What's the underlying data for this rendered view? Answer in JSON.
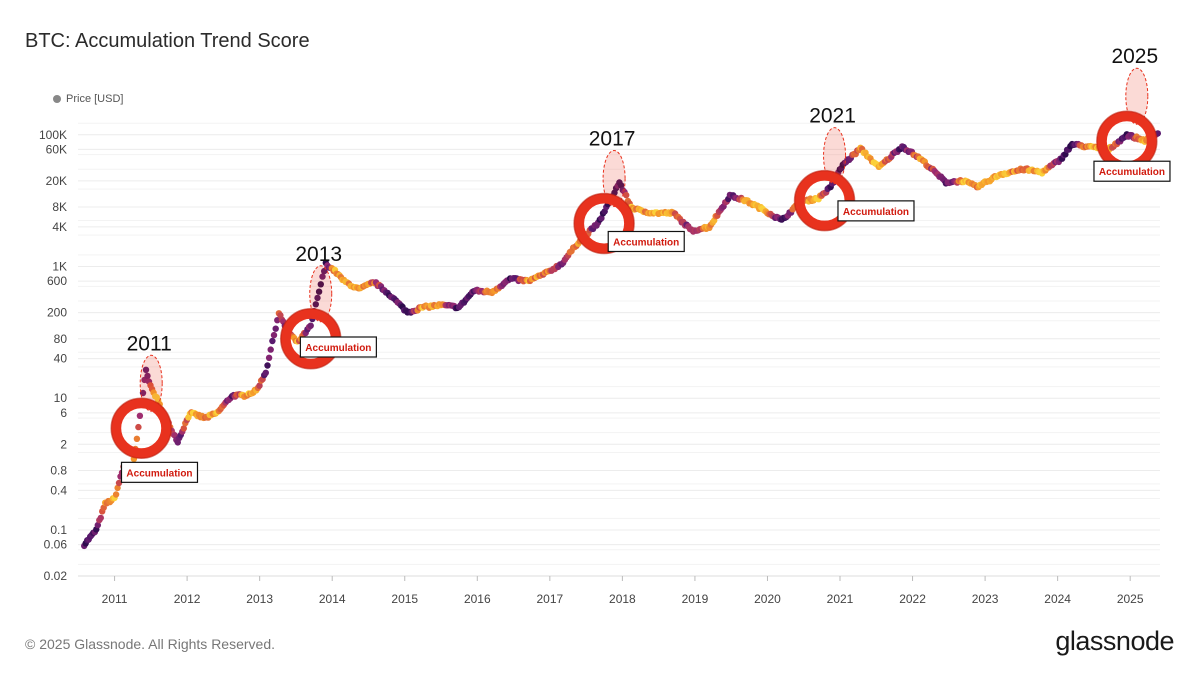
{
  "title": "BTC: Accumulation Trend Score",
  "legend": {
    "label": "Price [USD]",
    "color": "#888888"
  },
  "footer": "© 2025 Glassnode. All Rights Reserved.",
  "logo": "glassnode",
  "colors": {
    "background": "#ffffff",
    "grid": "#ececec",
    "annotation_red": "#e8321e",
    "annotation_text": "#d11a0e",
    "score_palette": [
      "#2a0a4a",
      "#5a1a6e",
      "#9a2a72",
      "#d9543e",
      "#f59a2a",
      "#fbd13a"
    ]
  },
  "chart_data": {
    "type": "scatter",
    "title": "BTC: Accumulation Trend Score",
    "xlabel": "",
    "ylabel": "",
    "x_range": [
      "2010-07-01",
      "2025-05-31"
    ],
    "y_scale": "log",
    "ylim": [
      0.02,
      180000
    ],
    "grid": true,
    "legend_position": "top-left",
    "x_ticks": [
      "2011",
      "2012",
      "2013",
      "2014",
      "2015",
      "2016",
      "2017",
      "2018",
      "2019",
      "2020",
      "2021",
      "2022",
      "2023",
      "2024",
      "2025"
    ],
    "y_ticks": [
      {
        "label": "0.02",
        "value": 0.02
      },
      {
        "label": "0.06",
        "value": 0.06
      },
      {
        "label": "0.1",
        "value": 0.1
      },
      {
        "label": "0.4",
        "value": 0.4
      },
      {
        "label": "0.8",
        "value": 0.8
      },
      {
        "label": "2",
        "value": 2
      },
      {
        "label": "6",
        "value": 6
      },
      {
        "label": "10",
        "value": 10
      },
      {
        "label": "40",
        "value": 40
      },
      {
        "label": "80",
        "value": 80
      },
      {
        "label": "200",
        "value": 200
      },
      {
        "label": "600",
        "value": 600
      },
      {
        "label": "1K",
        "value": 1000
      },
      {
        "label": "4K",
        "value": 4000
      },
      {
        "label": "8K",
        "value": 8000
      },
      {
        "label": "20K",
        "value": 20000
      },
      {
        "label": "60K",
        "value": 60000
      },
      {
        "label": "100K",
        "value": 100000
      }
    ],
    "series": [
      {
        "points": [
          {
            "date": "2010-08-01",
            "price": 0.06,
            "score": 0.1
          },
          {
            "date": "2010-10-01",
            "price": 0.1,
            "score": 0.2
          },
          {
            "date": "2010-11-15",
            "price": 0.25,
            "score": 0.7
          },
          {
            "date": "2011-01-01",
            "price": 0.3,
            "score": 0.9
          },
          {
            "date": "2011-02-15",
            "price": 0.9,
            "score": 0.4
          },
          {
            "date": "2011-04-01",
            "price": 0.8,
            "score": 0.8
          },
          {
            "date": "2011-05-01",
            "price": 3.5,
            "score": 0.6
          },
          {
            "date": "2011-06-08",
            "price": 28,
            "score": 0.1
          },
          {
            "date": "2011-07-01",
            "price": 15,
            "score": 0.7
          },
          {
            "date": "2011-08-01",
            "price": 10,
            "score": 0.9
          },
          {
            "date": "2011-09-15",
            "price": 5,
            "score": 0.8
          },
          {
            "date": "2011-11-15",
            "price": 2.2,
            "score": 0.1
          },
          {
            "date": "2012-01-15",
            "price": 6,
            "score": 0.9
          },
          {
            "date": "2012-04-01",
            "price": 5,
            "score": 0.7
          },
          {
            "date": "2012-06-01",
            "price": 6,
            "score": 0.9
          },
          {
            "date": "2012-08-15",
            "price": 11,
            "score": 0.2
          },
          {
            "date": "2012-10-15",
            "price": 11,
            "score": 0.9
          },
          {
            "date": "2012-12-15",
            "price": 13,
            "score": 0.8
          },
          {
            "date": "2013-02-01",
            "price": 25,
            "score": 0.2
          },
          {
            "date": "2013-04-08",
            "price": 200,
            "score": 0.5
          },
          {
            "date": "2013-05-15",
            "price": 110,
            "score": 0.2
          },
          {
            "date": "2013-07-10",
            "price": 70,
            "score": 0.8
          },
          {
            "date": "2013-09-15",
            "price": 125,
            "score": 0.2
          },
          {
            "date": "2013-11-30",
            "price": 1100,
            "score": 0.1
          },
          {
            "date": "2014-01-15",
            "price": 850,
            "score": 0.9
          },
          {
            "date": "2014-03-01",
            "price": 600,
            "score": 0.8
          },
          {
            "date": "2014-05-15",
            "price": 450,
            "score": 0.9
          },
          {
            "date": "2014-08-01",
            "price": 580,
            "score": 0.6
          },
          {
            "date": "2014-10-15",
            "price": 380,
            "score": 0.2
          },
          {
            "date": "2015-01-15",
            "price": 200,
            "score": 0.1
          },
          {
            "date": "2015-04-01",
            "price": 240,
            "score": 0.9
          },
          {
            "date": "2015-07-01",
            "price": 260,
            "score": 0.7
          },
          {
            "date": "2015-10-01",
            "price": 240,
            "score": 0.1
          },
          {
            "date": "2015-12-15",
            "price": 430,
            "score": 0.2
          },
          {
            "date": "2016-03-15",
            "price": 410,
            "score": 0.9
          },
          {
            "date": "2016-06-15",
            "price": 650,
            "score": 0.1
          },
          {
            "date": "2016-09-15",
            "price": 600,
            "score": 0.8
          },
          {
            "date": "2016-12-15",
            "price": 800,
            "score": 0.7
          },
          {
            "date": "2017-03-01",
            "price": 1100,
            "score": 0.3
          },
          {
            "date": "2017-06-01",
            "price": 2500,
            "score": 0.8
          },
          {
            "date": "2017-09-01",
            "price": 4500,
            "score": 0.2
          },
          {
            "date": "2017-12-17",
            "price": 19000,
            "score": 0.1
          },
          {
            "date": "2018-02-15",
            "price": 8000,
            "score": 0.9
          },
          {
            "date": "2018-04-01",
            "price": 7000,
            "score": 0.8
          },
          {
            "date": "2018-06-15",
            "price": 6500,
            "score": 0.9
          },
          {
            "date": "2018-09-15",
            "price": 6500,
            "score": 0.7
          },
          {
            "date": "2018-12-15",
            "price": 3500,
            "score": 0.3
          },
          {
            "date": "2019-03-15",
            "price": 4000,
            "score": 0.9
          },
          {
            "date": "2019-06-26",
            "price": 12000,
            "score": 0.2
          },
          {
            "date": "2019-09-15",
            "price": 10000,
            "score": 0.8
          },
          {
            "date": "2019-12-15",
            "price": 7200,
            "score": 0.9
          },
          {
            "date": "2020-03-13",
            "price": 5000,
            "score": 0.1
          },
          {
            "date": "2020-06-15",
            "price": 9500,
            "score": 0.8
          },
          {
            "date": "2020-09-15",
            "price": 11000,
            "score": 0.9
          },
          {
            "date": "2020-11-15",
            "price": 16000,
            "score": 0.2
          },
          {
            "date": "2021-01-15",
            "price": 35000,
            "score": 0.1
          },
          {
            "date": "2021-04-14",
            "price": 62000,
            "score": 0.8
          },
          {
            "date": "2021-07-15",
            "price": 32000,
            "score": 0.9
          },
          {
            "date": "2021-11-10",
            "price": 67000,
            "score": 0.1
          },
          {
            "date": "2022-02-15",
            "price": 42000,
            "score": 0.8
          },
          {
            "date": "2022-06-18",
            "price": 19000,
            "score": 0.1
          },
          {
            "date": "2022-09-15",
            "price": 20000,
            "score": 0.9
          },
          {
            "date": "2022-11-21",
            "price": 16000,
            "score": 0.8
          },
          {
            "date": "2023-03-15",
            "price": 25000,
            "score": 0.9
          },
          {
            "date": "2023-07-15",
            "price": 30000,
            "score": 0.7
          },
          {
            "date": "2023-10-15",
            "price": 27000,
            "score": 0.9
          },
          {
            "date": "2024-01-15",
            "price": 42000,
            "score": 0.2
          },
          {
            "date": "2024-03-14",
            "price": 72000,
            "score": 0.1
          },
          {
            "date": "2024-06-15",
            "price": 65000,
            "score": 0.9
          },
          {
            "date": "2024-09-15",
            "price": 60000,
            "score": 0.8
          },
          {
            "date": "2024-12-15",
            "price": 100000,
            "score": 0.1
          },
          {
            "date": "2025-03-15",
            "price": 82000,
            "score": 0.9
          },
          {
            "date": "2025-05-20",
            "price": 105000,
            "score": 0.2
          }
        ]
      }
    ],
    "annotations": [
      {
        "year_label": "2011",
        "circle_date": "2011-05-15",
        "circle_price": 3.5,
        "label_date": "2011-08-15",
        "label_price": 0.75,
        "label": "Accumulation"
      },
      {
        "year_label": "2013",
        "circle_date": "2013-09-15",
        "circle_price": 80,
        "label_date": "2014-02-01",
        "label_price": 60,
        "label": "Accumulation"
      },
      {
        "year_label": "2017",
        "circle_date": "2017-10-01",
        "circle_price": 4500,
        "label_date": "2018-05-01",
        "label_price": 2400,
        "label": "Accumulation"
      },
      {
        "year_label": "2021",
        "circle_date": "2020-10-15",
        "circle_price": 10000,
        "label_date": "2021-07-01",
        "label_price": 7000,
        "label": "Accumulation"
      },
      {
        "year_label": "2025",
        "circle_date": "2024-12-15",
        "circle_price": 80000,
        "label_date": "2025-01-10",
        "label_price": 28000,
        "label": "Accumulation"
      }
    ]
  }
}
